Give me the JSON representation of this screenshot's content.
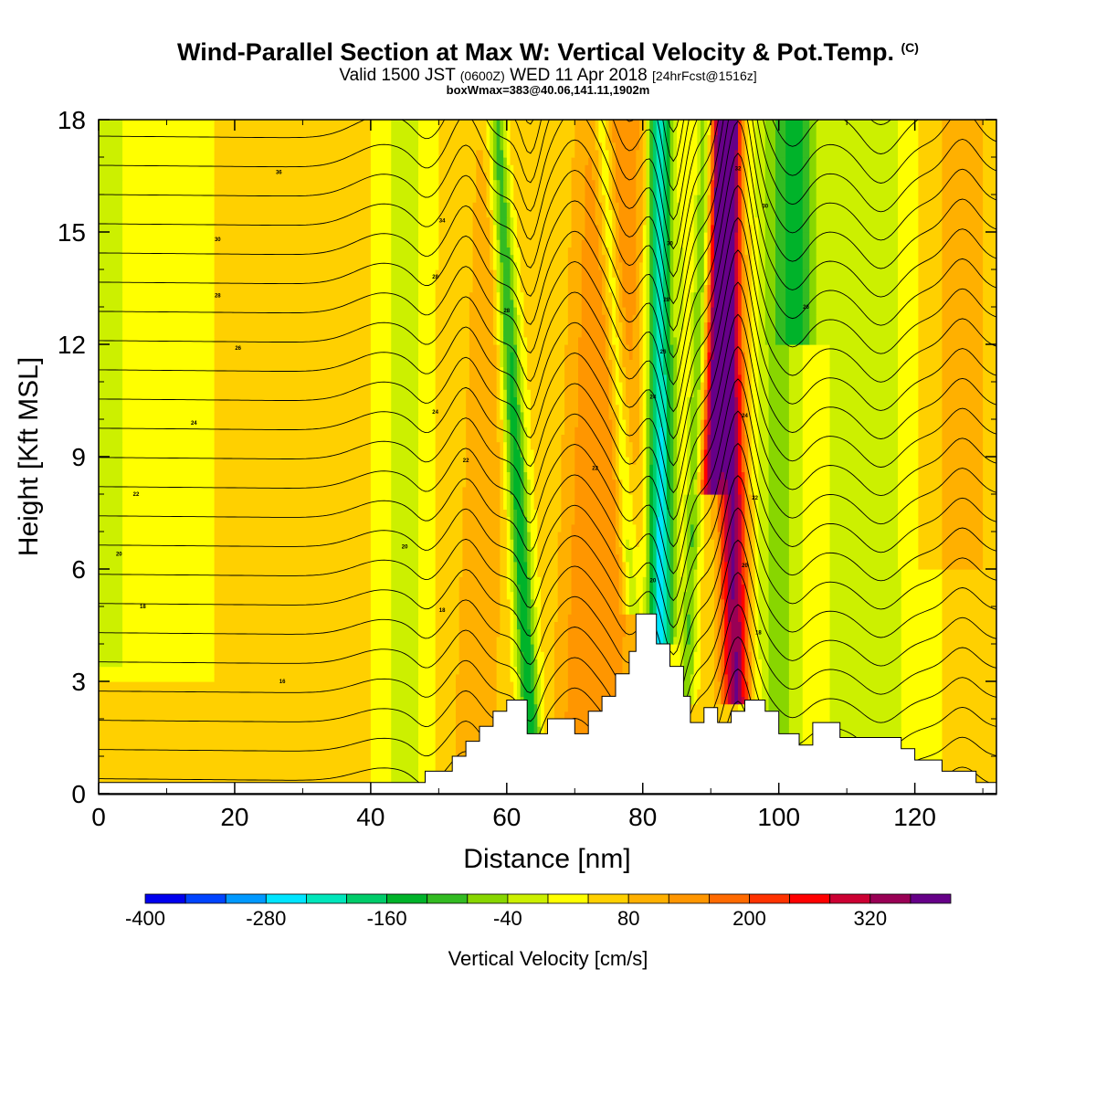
{
  "header": {
    "title": "Wind-Parallel Section at Max W: Vertical Velocity & Pot.Temp.",
    "title_mark": "(C)",
    "valid_prefix": "Valid 1500 JST",
    "valid_utc": "(0600Z)",
    "valid_date": "WED 11 Apr 2018",
    "forecast": "[24hrFcst@1516z]",
    "box_info": "boxWmax=383@40.06,141.11,1902m"
  },
  "chart_data": {
    "type": "heatmap",
    "xlabel": "Distance [nm]",
    "ylabel": "Height [Kft MSL]",
    "xlim": [
      0,
      132
    ],
    "ylim": [
      0,
      18
    ],
    "x_ticks": [
      0,
      20,
      40,
      60,
      80,
      100,
      120
    ],
    "y_ticks": [
      0,
      3,
      6,
      9,
      12,
      15,
      18
    ],
    "colorbar": {
      "label": "Vertical Velocity [cm/s]",
      "min": -400,
      "max": 400,
      "step": 40,
      "tick_values": [
        -400,
        -280,
        -160,
        -40,
        80,
        200,
        320
      ],
      "colors": [
        "#0000ee",
        "#0044ff",
        "#0099ff",
        "#00e5ff",
        "#00e6bb",
        "#00cc6a",
        "#00b32a",
        "#33bb22",
        "#88d600",
        "#ccf000",
        "#ffff00",
        "#ffd000",
        "#ffb000",
        "#ff9600",
        "#ff6a00",
        "#ff3300",
        "#ff0000",
        "#cc0033",
        "#990055",
        "#660088"
      ]
    },
    "terrain": [
      [
        0,
        0.3
      ],
      [
        48,
        0.3
      ],
      [
        48,
        0.6
      ],
      [
        52,
        0.6
      ],
      [
        52,
        1.0
      ],
      [
        54,
        1.0
      ],
      [
        54,
        1.4
      ],
      [
        56,
        1.4
      ],
      [
        56,
        1.8
      ],
      [
        58,
        1.8
      ],
      [
        58,
        2.2
      ],
      [
        60,
        2.2
      ],
      [
        60,
        2.5
      ],
      [
        63,
        2.5
      ],
      [
        63,
        1.6
      ],
      [
        66,
        1.6
      ],
      [
        66,
        2.0
      ],
      [
        70,
        2.0
      ],
      [
        70,
        1.6
      ],
      [
        72,
        1.6
      ],
      [
        72,
        2.2
      ],
      [
        74,
        2.2
      ],
      [
        74,
        2.6
      ],
      [
        76,
        2.6
      ],
      [
        76,
        3.2
      ],
      [
        78,
        3.2
      ],
      [
        78,
        3.8
      ],
      [
        79,
        3.8
      ],
      [
        79,
        4.8
      ],
      [
        82,
        4.8
      ],
      [
        82,
        4.0
      ],
      [
        84,
        4.0
      ],
      [
        84,
        3.4
      ],
      [
        86,
        3.4
      ],
      [
        86,
        2.6
      ],
      [
        87,
        2.6
      ],
      [
        87,
        1.9
      ],
      [
        89,
        1.9
      ],
      [
        89,
        2.3
      ],
      [
        91,
        2.3
      ],
      [
        91,
        1.9
      ],
      [
        93,
        1.9
      ],
      [
        93,
        2.2
      ],
      [
        95,
        2.2
      ],
      [
        95,
        2.5
      ],
      [
        98,
        2.5
      ],
      [
        98,
        2.2
      ],
      [
        100,
        2.2
      ],
      [
        100,
        1.6
      ],
      [
        103,
        1.6
      ],
      [
        103,
        1.3
      ],
      [
        105,
        1.3
      ],
      [
        105,
        1.9
      ],
      [
        109,
        1.9
      ],
      [
        109,
        1.5
      ],
      [
        118,
        1.5
      ],
      [
        118,
        1.2
      ],
      [
        120,
        1.2
      ],
      [
        120,
        0.9
      ],
      [
        124,
        0.9
      ],
      [
        124,
        0.6
      ],
      [
        129,
        0.6
      ],
      [
        129,
        0.3
      ],
      [
        132,
        0.3
      ]
    ],
    "w_field": {
      "base": 50,
      "features": [
        {
          "center_x0": 3,
          "slope": 0.0,
          "width": 12,
          "amplitude": -40,
          "y_range": [
            3,
            18
          ]
        },
        {
          "center_x0": 0,
          "slope": 0.0,
          "width": 3,
          "amplitude": -40,
          "y_range": [
            3.5,
            18
          ]
        },
        {
          "center_x0": 45,
          "slope": 0.0,
          "width": 3.5,
          "amplitude": -65,
          "y_range": [
            0,
            18
          ]
        },
        {
          "center_x0": 55,
          "slope": 0.2,
          "width": 3.5,
          "amplitude": 60,
          "y_range": [
            0,
            18
          ]
        },
        {
          "center_x0": 64,
          "slope": -0.3,
          "width": 1.5,
          "amplitude": -200,
          "y_range": [
            0,
            18
          ]
        },
        {
          "center_x0": 69,
          "slope": 0.2,
          "width": 3,
          "amplitude": 60,
          "y_range": [
            0,
            18
          ]
        },
        {
          "center_x0": 74,
          "slope": 0.2,
          "width": 4,
          "amplitude": 100,
          "y_range": [
            0,
            18
          ]
        },
        {
          "center_x0": 80,
          "slope": -0.33,
          "width": 1.3,
          "amplitude": -120,
          "y_range": [
            4.8,
            18
          ]
        },
        {
          "center_x0": 83,
          "slope": 0.2,
          "width": 1.2,
          "amplitude": -40,
          "y_range": [
            0,
            18
          ]
        },
        {
          "center_x0": 82.5,
          "slope": 0.0,
          "width": 1.8,
          "amplitude": -300,
          "y_range": [
            4,
            18
          ]
        },
        {
          "center_x0": 86,
          "slope": 0.18,
          "width": 1.1,
          "amplitude": -130,
          "y_range": [
            2.5,
            18
          ]
        },
        {
          "center_x0": 94,
          "slope": -0.1,
          "width": 2.0,
          "amplitude": 320,
          "y_range": [
            2.5,
            18
          ]
        },
        {
          "center_x0": 88,
          "slope": 0.25,
          "width": 1.6,
          "amplitude": 300,
          "y_range": [
            8,
            18
          ]
        },
        {
          "center_x0": 100,
          "slope": 0.0,
          "width": 4,
          "amplitude": -100,
          "y_range": [
            0,
            18
          ]
        },
        {
          "center_x0": 103,
          "slope": 0.0,
          "width": 3,
          "amplitude": -120,
          "y_range": [
            12,
            18
          ]
        },
        {
          "center_x0": 109,
          "slope": 0.0,
          "width": 2.5,
          "amplitude": -65,
          "y_range": [
            0,
            18
          ]
        },
        {
          "center_x0": 115,
          "slope": 0.0,
          "width": 4,
          "amplitude": -80,
          "y_range": [
            0,
            18
          ]
        },
        {
          "center_x0": 127,
          "slope": 0.0,
          "width": 3.5,
          "amplitude": 60,
          "y_range": [
            0,
            18
          ]
        },
        {
          "center_x0": 125,
          "slope": 0.0,
          "width": 5,
          "amplitude": -40,
          "y_range": [
            0,
            6
          ]
        }
      ]
    },
    "theta_labels": [
      {
        "text": "36",
        "x": 26.5,
        "y": 16.6
      },
      {
        "text": "34",
        "x": 50.5,
        "y": 15.3
      },
      {
        "text": "30",
        "x": 17.5,
        "y": 14.8
      },
      {
        "text": "28",
        "x": 49.5,
        "y": 13.8
      },
      {
        "text": "28",
        "x": 17.5,
        "y": 13.3
      },
      {
        "text": "28",
        "x": 60.0,
        "y": 12.9
      },
      {
        "text": "26",
        "x": 20.5,
        "y": 11.9
      },
      {
        "text": "24",
        "x": 49.5,
        "y": 10.2
      },
      {
        "text": "24",
        "x": 14.0,
        "y": 9.9
      },
      {
        "text": "22",
        "x": 54.0,
        "y": 8.9
      },
      {
        "text": "22",
        "x": 73.0,
        "y": 8.7
      },
      {
        "text": "22",
        "x": 5.5,
        "y": 8.0
      },
      {
        "text": "20",
        "x": 45.0,
        "y": 6.6
      },
      {
        "text": "20",
        "x": 3.0,
        "y": 6.4
      },
      {
        "text": "18",
        "x": 50.5,
        "y": 4.9
      },
      {
        "text": "18",
        "x": 6.5,
        "y": 5.0
      },
      {
        "text": "16",
        "x": 27.0,
        "y": 3.0
      },
      {
        "text": "32",
        "x": 94.0,
        "y": 16.7
      },
      {
        "text": "30",
        "x": 98.0,
        "y": 15.7
      },
      {
        "text": "30",
        "x": 84.0,
        "y": 14.7
      },
      {
        "text": "28",
        "x": 83.5,
        "y": 13.2
      },
      {
        "text": "26",
        "x": 104.0,
        "y": 13.0
      },
      {
        "text": "26",
        "x": 83.0,
        "y": 11.8
      },
      {
        "text": "24",
        "x": 81.5,
        "y": 10.6
      },
      {
        "text": "24",
        "x": 95.0,
        "y": 10.1
      },
      {
        "text": "22",
        "x": 96.5,
        "y": 7.9
      },
      {
        "text": "20",
        "x": 95.0,
        "y": 6.1
      },
      {
        "text": "20",
        "x": 81.5,
        "y": 5.7
      },
      {
        "text": "18",
        "x": 97.0,
        "y": 4.3
      }
    ]
  }
}
